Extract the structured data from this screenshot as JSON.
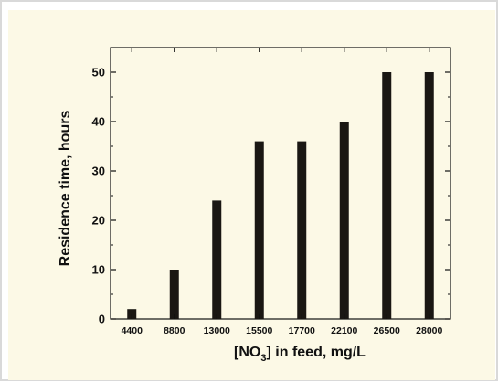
{
  "chart_data": {
    "type": "bar",
    "categories": [
      "4400",
      "8800",
      "13000",
      "15500",
      "17700",
      "22100",
      "26500",
      "28000"
    ],
    "values": [
      2,
      10,
      24,
      36,
      36,
      40,
      50,
      50
    ],
    "ylabel": "Residence time, hours",
    "xlabel_parts": {
      "before": "[NO",
      "subscript": "3",
      "after": "] in feed, mg/L"
    },
    "ylim": [
      0,
      55
    ],
    "yticks": [
      0,
      10,
      20,
      30,
      40,
      50
    ],
    "grid": false,
    "bar_color": "#1a1713"
  }
}
